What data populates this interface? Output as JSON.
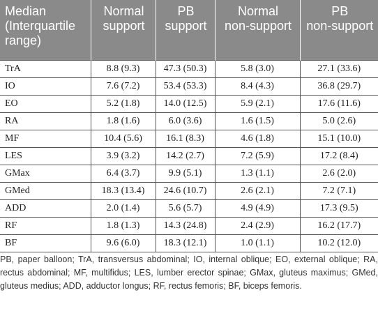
{
  "table": {
    "columns": [
      "Median (Interquartile range)",
      "Normal support",
      "PB support",
      "Normal non-support",
      "PB non-support"
    ],
    "header_lines": [
      [
        "Median",
        "(Interquartile",
        "range)"
      ],
      [
        "Normal",
        "support"
      ],
      [
        "PB",
        "support"
      ],
      [
        "Normal",
        "non-support"
      ],
      [
        "PB",
        "non-support"
      ]
    ],
    "rows": [
      [
        "TrA",
        "8.8 (9.3)",
        "47.3 (50.3)",
        "5.8 (3.0)",
        "27.1 (33.6)"
      ],
      [
        "IO",
        "7.6 (7.2)",
        "53.4 (53.3)",
        "8.4 (4.3)",
        "36.8 (29.7)"
      ],
      [
        "EO",
        "5.2 (1.8)",
        "14.0 (12.5)",
        "5.9 (2.1)",
        "17.6 (11.6)"
      ],
      [
        "RA",
        "1.8 (1.6)",
        "6.0 (3.6)",
        "1.6 (1.5)",
        "5.0 (2.6)"
      ],
      [
        "MF",
        "10.4 (5.6)",
        "16.1 (8.3)",
        "4.6 (1.8)",
        "15.1 (10.0)"
      ],
      [
        "LES",
        "3.9 (3.2)",
        "14.2 (2.7)",
        "7.2 (5.9)",
        "17.2 (8.4)"
      ],
      [
        "GMax",
        "6.4 (3.7)",
        "9.9 (5.1)",
        "1.3 (1.1)",
        "2.6 (2.0)"
      ],
      [
        "GMed",
        "18.3 (13.4)",
        "24.6 (10.7)",
        "2.6 (2.1)",
        "7.2 (7.1)"
      ],
      [
        "ADD",
        "2.0 (1.4)",
        "5.6 (5.7)",
        "4.9 (4.9)",
        "17.3 (9.5)"
      ],
      [
        "RF",
        "1.8 (1.3)",
        "14.3 (24.8)",
        "2.4 (2.9)",
        "16.2 (17.7)"
      ],
      [
        "BF",
        "9.6 (6.0)",
        "18.3 (12.1)",
        "1.0 (1.1)",
        "10.2 (12.0)"
      ]
    ]
  },
  "footnote": "PB, paper balloon; TrA, transversus abdominal; IO, internal oblique; EO, external oblique; RA, rectus abdominal; MF, multifidus; LES, lumber erector spinae; GMax, gluteus maximus; GMed, gluteus medius; ADD, adductor longus; RF, rectus femoris; BF, biceps femoris.",
  "colors": {
    "header_background": "#8a8a8a",
    "header_text": "#ffffff",
    "rule_lines": "#555555",
    "body_text": "#222222"
  }
}
